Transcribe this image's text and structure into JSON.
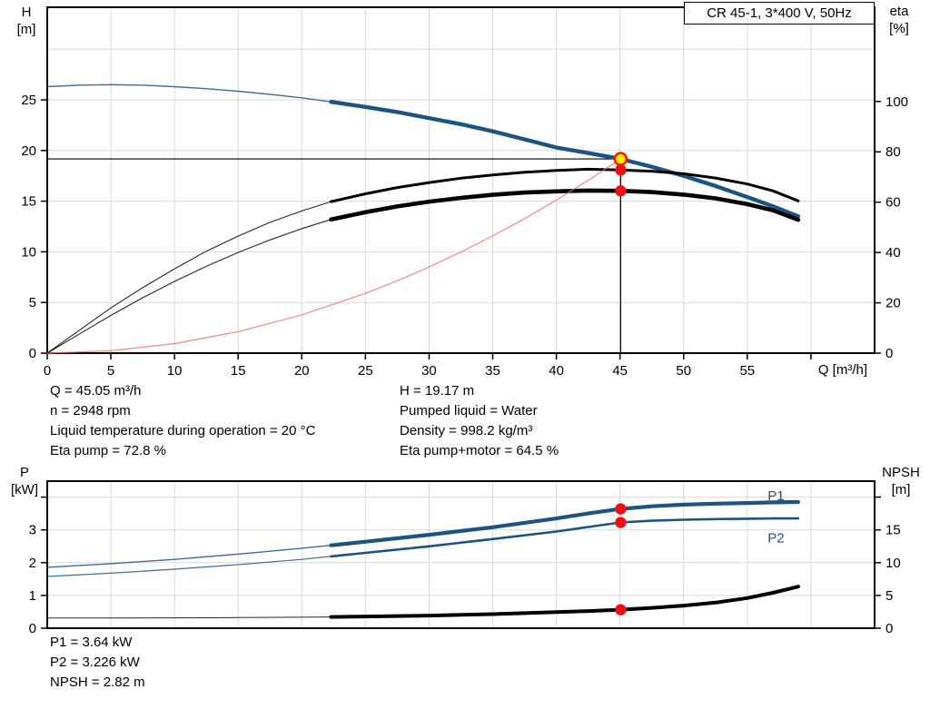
{
  "title_box": "CR 45-1, 3*400 V, 50Hz",
  "axis_labels": {
    "h_top": "H",
    "h_unit": "[m]",
    "eta_top": "eta",
    "eta_unit": "[%]",
    "q": "Q [m³/h]",
    "p_top": "P",
    "p_unit": "[kW]",
    "npsh_top": "NPSH",
    "npsh_unit": "[m]"
  },
  "annotations": {
    "left_lines": [
      "Q = 45.05 m³/h",
      "n = 2948 rpm",
      "Liquid temperature during operation = 20 °C",
      "Eta pump = 72.8 %"
    ],
    "right_lines": [
      "H = 19.17 m",
      "Pumped liquid = Water",
      "Density = 998.2 kg/m³",
      "Eta pump+motor = 64.5 %"
    ],
    "bottom_lines": [
      "P1 = 3.64 kW",
      "P2 = 3.226 kW",
      "NPSH = 2.82 m"
    ]
  },
  "colors": {
    "curve_blue": "#1d5382",
    "curve_black": "#000000",
    "system_curve_red": "#f4736d",
    "dot_red": "#ee1111",
    "duty_fill": "#ffee00",
    "duty_ring": "#ee2211",
    "grid": "#d9d9d9",
    "frame": "#000000"
  },
  "duty_point": {
    "q": 45.05,
    "h": 19.17,
    "eta_pump": 72.8,
    "eta_pump_motor": 64.5,
    "p1": 3.64,
    "p2": 3.226,
    "npsh": 2.82
  },
  "chart_data": [
    {
      "type": "line",
      "title": "CR 45-1, 3*400 V, 50Hz",
      "x_axis": {
        "label": "Q [m³/h]",
        "min": 0,
        "max": 65,
        "ticks": [
          0,
          5,
          10,
          15,
          20,
          25,
          30,
          35,
          40,
          45,
          50,
          55,
          60
        ],
        "tick_labels": [
          "0",
          "5",
          "10",
          "15",
          "20",
          "25",
          "30",
          "35",
          "40",
          "45",
          "50",
          "55",
          ""
        ],
        "grid": [
          5,
          10,
          15,
          20,
          25,
          30,
          35,
          40,
          45,
          50,
          55,
          60
        ]
      },
      "y_left": {
        "label": "H [m]",
        "min": 0,
        "max": 34.1,
        "ticks": [
          0,
          5,
          10,
          15,
          20,
          25
        ],
        "tick_labels": [
          "0",
          "5",
          "10",
          "15",
          "20",
          "25"
        ],
        "grid": [
          5,
          10,
          15,
          20,
          25,
          30
        ]
      },
      "y_right": {
        "label": "eta [%]",
        "min": 0,
        "max": 137.5,
        "ticks": [
          0,
          20,
          40,
          60,
          80,
          100
        ],
        "tick_labels": [
          "0",
          "20",
          "40",
          "60",
          "80",
          "100"
        ]
      },
      "series": [
        {
          "name": "head-curve",
          "axis": "left",
          "color": "#1d5382",
          "thin": 1.4,
          "thick": 4.4,
          "thick_from": 22.3,
          "points": [
            [
              0,
              26.3
            ],
            [
              2.5,
              26.45
            ],
            [
              5,
              26.5
            ],
            [
              7.5,
              26.45
            ],
            [
              10,
              26.3
            ],
            [
              12.5,
              26.1
            ],
            [
              15,
              25.85
            ],
            [
              17.5,
              25.55
            ],
            [
              20,
              25.2
            ],
            [
              22.3,
              24.8
            ],
            [
              25,
              24.3
            ],
            [
              27.5,
              23.8
            ],
            [
              30,
              23.2
            ],
            [
              32.5,
              22.6
            ],
            [
              35,
              21.9
            ],
            [
              37.5,
              21.1
            ],
            [
              40,
              20.3
            ],
            [
              42.5,
              19.75
            ],
            [
              45.05,
              19.17
            ],
            [
              47.5,
              18.4
            ],
            [
              50,
              17.5
            ],
            [
              52.5,
              16.5
            ],
            [
              55,
              15.4
            ],
            [
              57,
              14.5
            ],
            [
              59,
              13.5
            ]
          ]
        },
        {
          "name": "eta-pump-curve",
          "axis": "right",
          "color": "#000000",
          "thin": 1.1,
          "thick": 3.0,
          "thick_from": 22.3,
          "points": [
            [
              0,
              0
            ],
            [
              2.5,
              9
            ],
            [
              5,
              18
            ],
            [
              7.5,
              26
            ],
            [
              10,
              33.5
            ],
            [
              12.5,
              40.5
            ],
            [
              15,
              46.5
            ],
            [
              17.5,
              52
            ],
            [
              20,
              56.5
            ],
            [
              22.3,
              60.2
            ],
            [
              25,
              63.3
            ],
            [
              27.5,
              65.8
            ],
            [
              30,
              67.8
            ],
            [
              32.5,
              69.5
            ],
            [
              35,
              70.8
            ],
            [
              37.5,
              71.9
            ],
            [
              40,
              72.6
            ],
            [
              42.5,
              73.1
            ],
            [
              45.05,
              72.8
            ],
            [
              47.5,
              72.3
            ],
            [
              50,
              71.3
            ],
            [
              52.5,
              69.6
            ],
            [
              55,
              67.2
            ],
            [
              57,
              64.5
            ],
            [
              59,
              60.5
            ]
          ]
        },
        {
          "name": "eta-pump-motor-curve",
          "axis": "right",
          "color": "#000000",
          "thin": 1.1,
          "thick": 4.6,
          "thick_from": 22.3,
          "points": [
            [
              0,
              0
            ],
            [
              2.5,
              7.5
            ],
            [
              5,
              15
            ],
            [
              7.5,
              22
            ],
            [
              10,
              28.5
            ],
            [
              12.5,
              34.5
            ],
            [
              15,
              40
            ],
            [
              17.5,
              45
            ],
            [
              20,
              49.5
            ],
            [
              22.3,
              53.1
            ],
            [
              25,
              56
            ],
            [
              27.5,
              58.3
            ],
            [
              30,
              60.2
            ],
            [
              32.5,
              61.7
            ],
            [
              35,
              62.9
            ],
            [
              37.5,
              63.8
            ],
            [
              40,
              64.3
            ],
            [
              42.5,
              64.6
            ],
            [
              45.05,
              64.5
            ],
            [
              47.5,
              64
            ],
            [
              50,
              63
            ],
            [
              52.5,
              61.5
            ],
            [
              55,
              59.2
            ],
            [
              57,
              56.8
            ],
            [
              59,
              53
            ]
          ]
        },
        {
          "name": "system-curve",
          "axis": "left",
          "color": "#f4736d",
          "thin": 1.2,
          "thick": 1.2,
          "thick_from": 999,
          "points": [
            [
              0,
              0
            ],
            [
              5,
              0.24
            ],
            [
              10,
              0.94
            ],
            [
              15,
              2.12
            ],
            [
              20,
              3.78
            ],
            [
              25,
              5.9
            ],
            [
              27.5,
              7.14
            ],
            [
              30,
              8.5
            ],
            [
              32.5,
              9.98
            ],
            [
              35,
              11.57
            ],
            [
              37.5,
              13.28
            ],
            [
              40,
              15.11
            ],
            [
              42.5,
              17.06
            ],
            [
              45.05,
              19.17
            ]
          ]
        }
      ],
      "ref_lines": [
        {
          "dir": "h",
          "v": 19.17,
          "axis": "left",
          "q1": 0,
          "q2": 45.05,
          "name": "duty-head-line"
        },
        {
          "dir": "v",
          "q": 45.05,
          "v1": 0,
          "v2": 19.17,
          "axis": "left",
          "name": "duty-flow-line"
        }
      ],
      "markers": [
        {
          "q": 45.05,
          "v": 19.17,
          "axis": "left",
          "style": "duty",
          "name": "duty-point-marker"
        },
        {
          "q": 45.05,
          "v": 72.8,
          "axis": "right",
          "style": "dot",
          "name": "eta-pump-marker"
        },
        {
          "q": 45.05,
          "v": 64.5,
          "axis": "right",
          "style": "dot",
          "name": "eta-pump-motor-marker"
        }
      ],
      "series_labels": []
    },
    {
      "type": "line",
      "title": "",
      "x_axis": {
        "label": "",
        "min": 0,
        "max": 65,
        "ticks": [],
        "tick_labels": [],
        "grid": [
          5,
          10,
          15,
          20,
          25,
          30,
          35,
          40,
          45,
          50,
          55,
          60
        ]
      },
      "y_left": {
        "label": "P [kW]",
        "min": 0,
        "max": 4.49,
        "ticks": [
          0,
          1,
          2,
          3,
          4
        ],
        "tick_labels": [
          "0",
          "1",
          "2",
          "3",
          ""
        ],
        "grid": [
          1,
          2,
          3,
          4
        ]
      },
      "y_right": {
        "label": "NPSH [m]",
        "min": 0,
        "max": 22.4,
        "ticks": [
          0,
          5,
          10,
          15,
          20
        ],
        "tick_labels": [
          "0",
          "5",
          "10",
          "15",
          ""
        ]
      },
      "series": [
        {
          "name": "p1-curve",
          "axis": "left",
          "color": "#1d5382",
          "thin": 1.4,
          "thick": 4.2,
          "thick_from": 22.3,
          "points": [
            [
              0,
              1.86
            ],
            [
              5,
              1.97
            ],
            [
              10,
              2.1
            ],
            [
              15,
              2.26
            ],
            [
              20,
              2.44
            ],
            [
              22.3,
              2.53
            ],
            [
              25,
              2.64
            ],
            [
              30,
              2.85
            ],
            [
              35,
              3.08
            ],
            [
              40,
              3.35
            ],
            [
              42.5,
              3.5
            ],
            [
              45.05,
              3.64
            ],
            [
              47.5,
              3.72
            ],
            [
              50,
              3.77
            ],
            [
              52.5,
              3.8
            ],
            [
              55,
              3.82
            ],
            [
              57,
              3.84
            ],
            [
              59,
              3.85
            ]
          ]
        },
        {
          "name": "p2-curve",
          "axis": "left",
          "color": "#1d5382",
          "thin": 1.2,
          "thick": 2.6,
          "thick_from": 22.3,
          "points": [
            [
              0,
              1.58
            ],
            [
              5,
              1.68
            ],
            [
              10,
              1.8
            ],
            [
              15,
              1.94
            ],
            [
              20,
              2.1
            ],
            [
              22.3,
              2.19
            ],
            [
              25,
              2.3
            ],
            [
              30,
              2.5
            ],
            [
              35,
              2.72
            ],
            [
              40,
              2.95
            ],
            [
              42.5,
              3.09
            ],
            [
              45.05,
              3.226
            ],
            [
              47.5,
              3.28
            ],
            [
              50,
              3.31
            ],
            [
              52.5,
              3.33
            ],
            [
              55,
              3.34
            ],
            [
              57,
              3.35
            ],
            [
              59,
              3.35
            ]
          ]
        },
        {
          "name": "npsh-curve",
          "axis": "right",
          "color": "#000000",
          "thin": 1.0,
          "thick": 4.0,
          "thick_from": 22.3,
          "points": [
            [
              0,
              1.55
            ],
            [
              5,
              1.55
            ],
            [
              10,
              1.58
            ],
            [
              15,
              1.62
            ],
            [
              20,
              1.68
            ],
            [
              22.3,
              1.72
            ],
            [
              25,
              1.78
            ],
            [
              30,
              1.92
            ],
            [
              35,
              2.15
            ],
            [
              40,
              2.45
            ],
            [
              42.5,
              2.62
            ],
            [
              45.05,
              2.82
            ],
            [
              47.5,
              3.1
            ],
            [
              50,
              3.45
            ],
            [
              52.5,
              3.9
            ],
            [
              55,
              4.6
            ],
            [
              57,
              5.4
            ],
            [
              59,
              6.35
            ]
          ]
        }
      ],
      "ref_lines": [],
      "markers": [
        {
          "q": 45.05,
          "v": 3.64,
          "axis": "left",
          "style": "dot",
          "name": "p1-marker"
        },
        {
          "q": 45.05,
          "v": 3.226,
          "axis": "left",
          "style": "dot",
          "name": "p2-marker"
        },
        {
          "q": 45.05,
          "v": 2.82,
          "axis": "right",
          "style": "dot",
          "name": "npsh-marker"
        }
      ],
      "series_labels": [
        {
          "text": "P1",
          "q": 56.6,
          "v": 4.05,
          "axis": "left",
          "color": "#1d5382",
          "name": "p1-curve-label"
        },
        {
          "text": "P2",
          "q": 56.6,
          "v": 2.75,
          "axis": "left",
          "color": "#1d5382",
          "name": "p2-curve-label"
        }
      ]
    }
  ]
}
